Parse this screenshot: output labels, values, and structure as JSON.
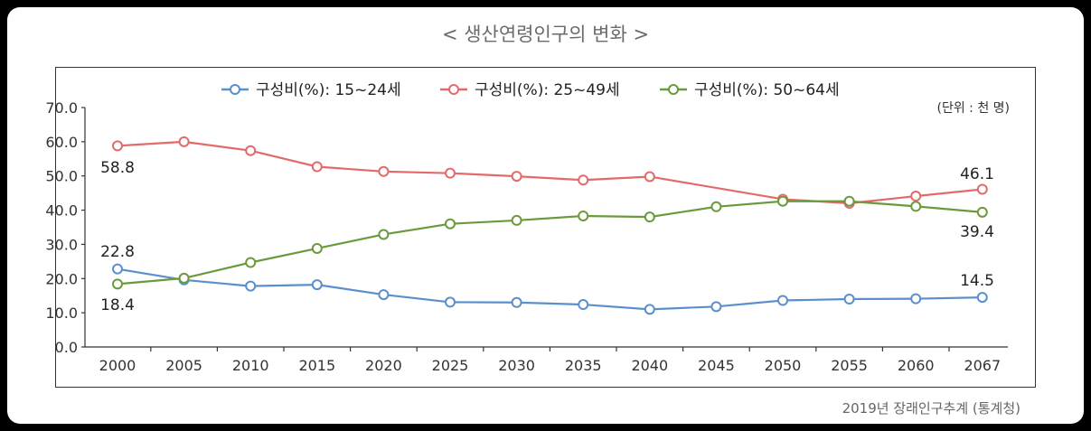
{
  "title": "< 생산연령인구의 변화 >",
  "unit": "(단위 : 천 명)",
  "source": "2019년 장래인구추계 (통계청)",
  "chart_data": {
    "type": "line",
    "categories": [
      "2000",
      "2005",
      "2010",
      "2015",
      "2020",
      "2025",
      "2030",
      "2035",
      "2040",
      "2045",
      "2050",
      "2055",
      "2060",
      "2067"
    ],
    "ylim": [
      0,
      70
    ],
    "yticks": [
      "0.0",
      "10.0",
      "20.0",
      "30.0",
      "40.0",
      "50.0",
      "60.0",
      "70.0"
    ],
    "legend_position": "top",
    "series": [
      {
        "name": "구성비(%): 15~24세",
        "color": "#5b8fcc",
        "values": [
          22.8,
          19.6,
          17.8,
          18.2,
          15.3,
          13.1,
          13.0,
          12.4,
          11.0,
          11.8,
          13.6,
          14.0,
          14.1,
          14.5
        ]
      },
      {
        "name": "구성비(%): 25~49세",
        "color": "#e46a6a",
        "values": [
          58.8,
          60.0,
          57.4,
          52.7,
          51.3,
          50.8,
          49.9,
          48.8,
          49.8,
          null,
          43.2,
          42.0,
          44.1,
          46.1
        ]
      },
      {
        "name": "구성비(%): 50~64세",
        "color": "#6b9a3c",
        "values": [
          18.4,
          20.1,
          24.7,
          28.8,
          32.9,
          36.0,
          37.0,
          38.3,
          38.0,
          41.0,
          42.6,
          42.6,
          41.1,
          39.4
        ]
      }
    ],
    "annotations": [
      "58.8",
      "22.8",
      "18.4",
      "46.1",
      "39.4",
      "14.5"
    ]
  }
}
